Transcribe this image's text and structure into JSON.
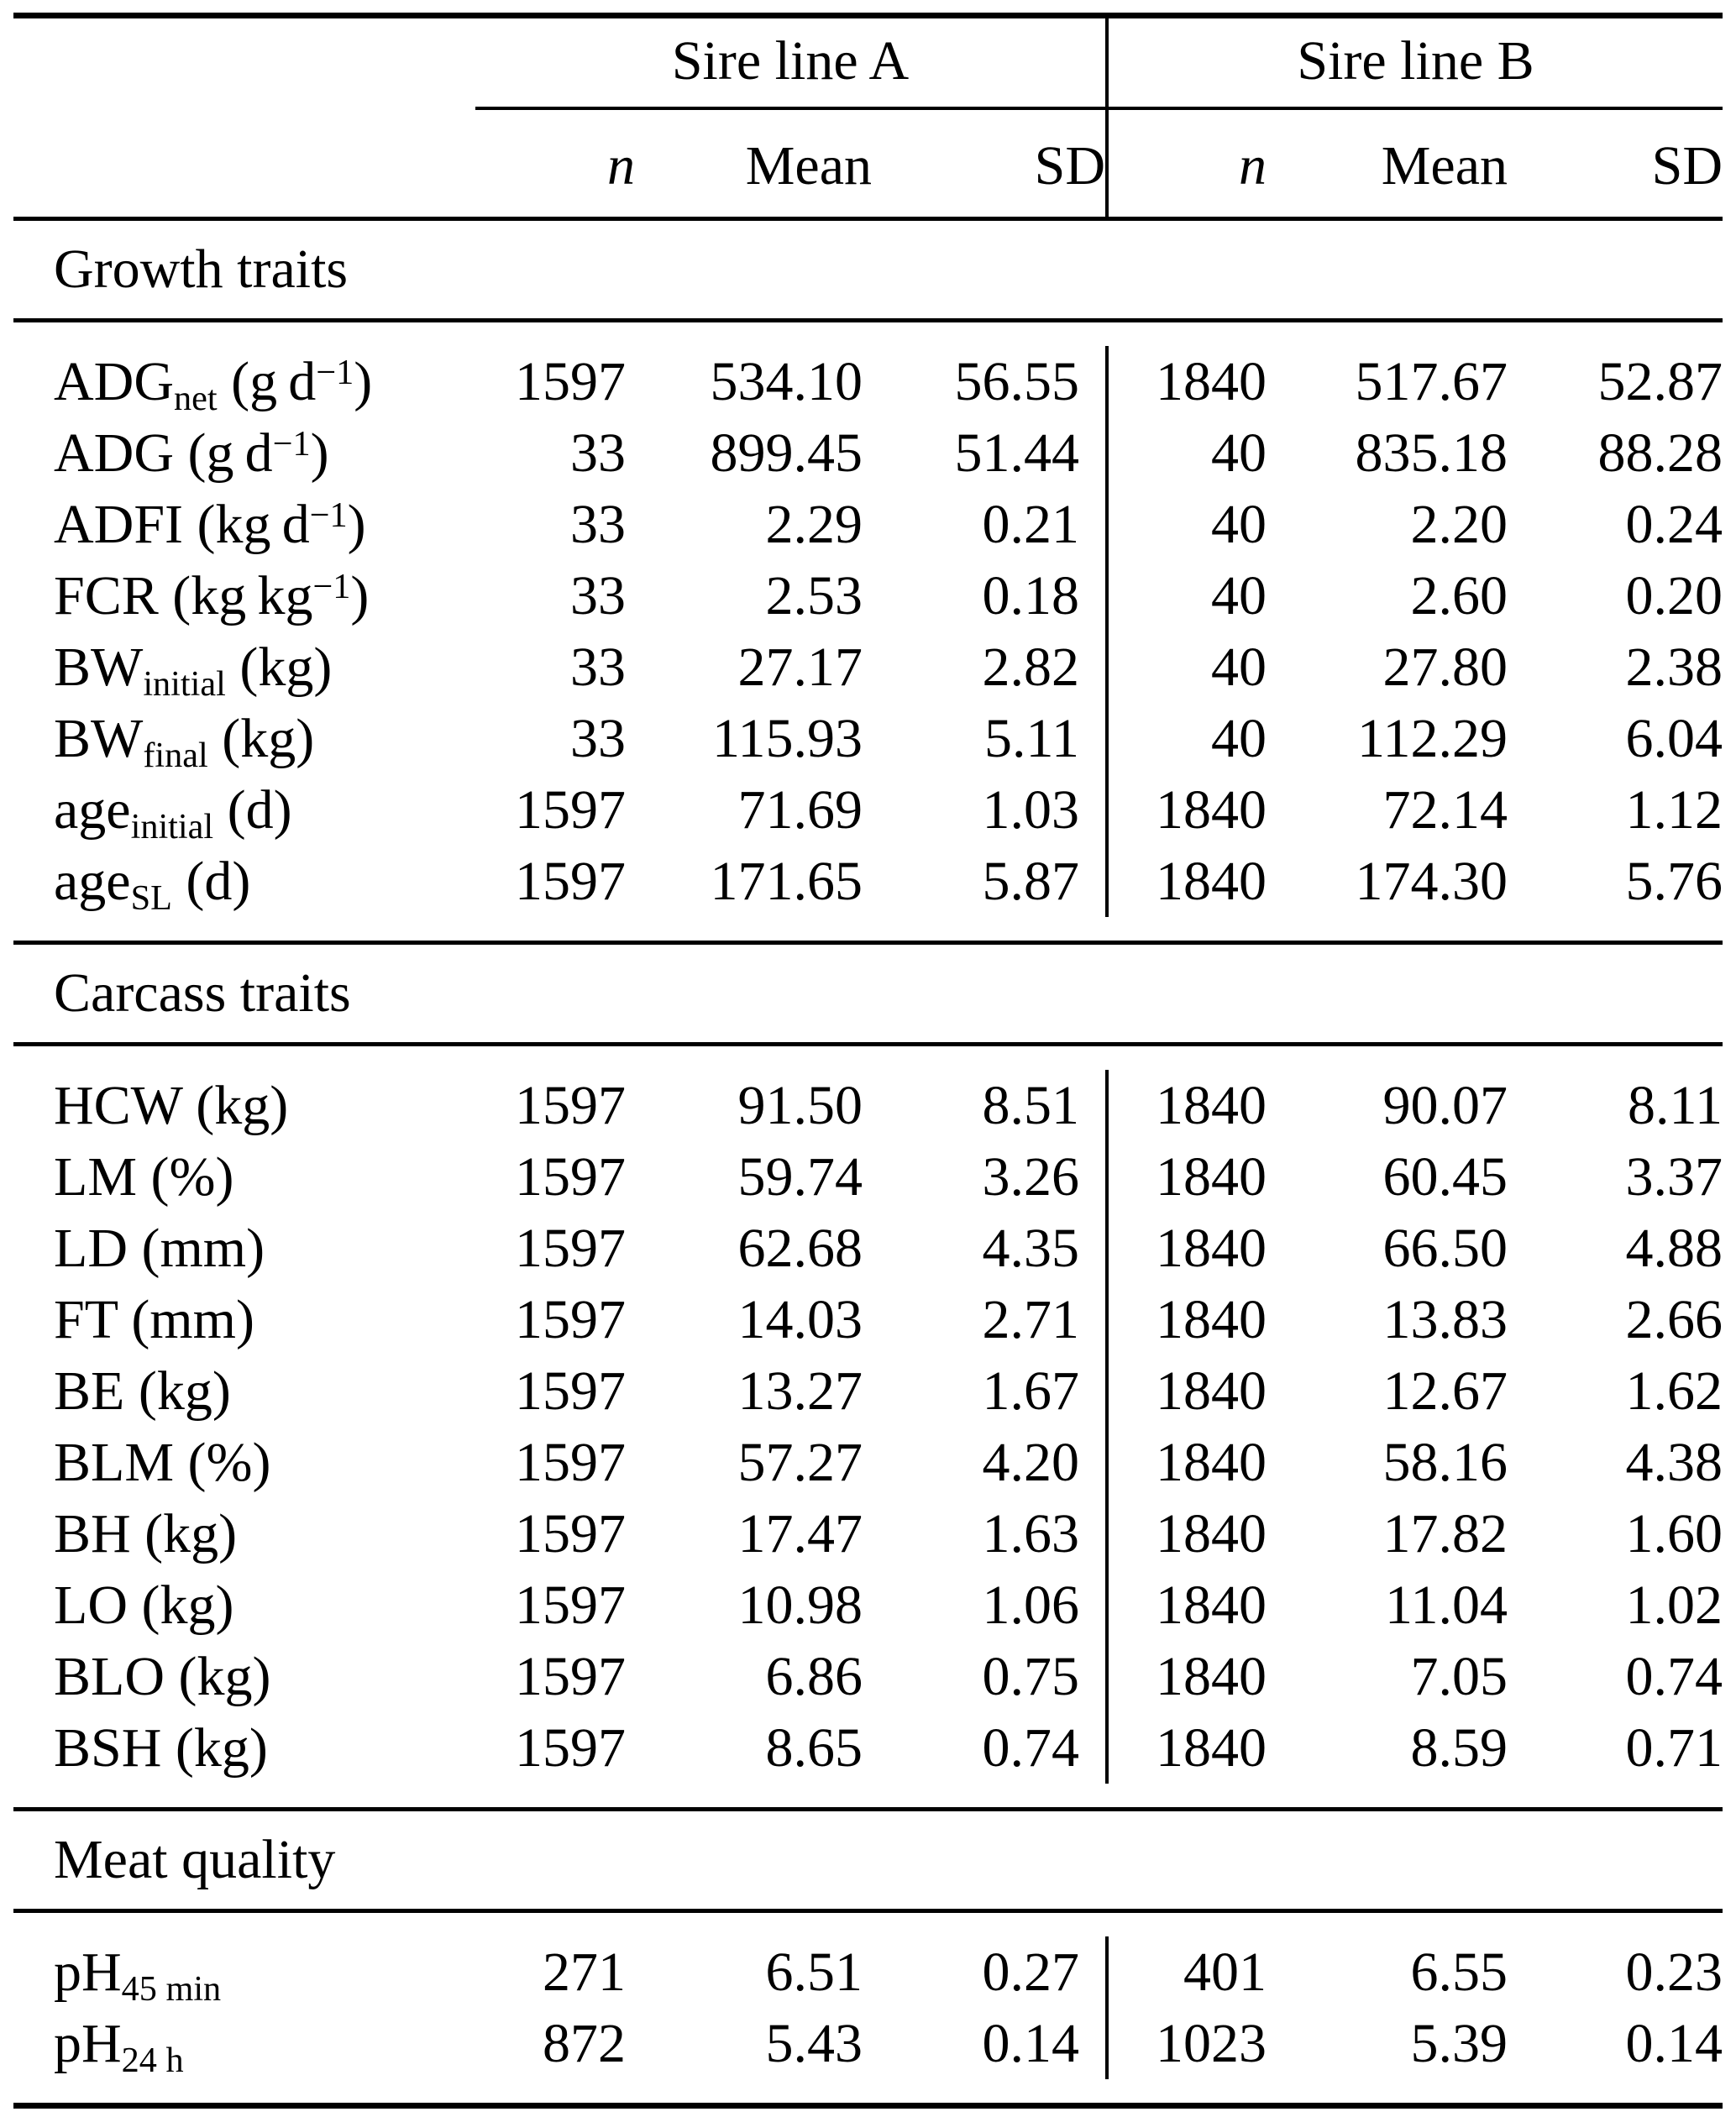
{
  "page": {
    "background": "#ffffff",
    "text_color": "#000000",
    "rule_color": "#000000"
  },
  "table": {
    "groups": [
      {
        "label": "Sire line A"
      },
      {
        "label": "Sire line B"
      }
    ],
    "columns": {
      "n": "n",
      "mean": "Mean",
      "sd": "SD"
    },
    "sections": [
      {
        "title": "Growth traits",
        "rows": [
          {
            "label": [
              {
                "t": "ADG"
              },
              {
                "t": "net",
                "s": "sub"
              },
              {
                "t": " (g d"
              },
              {
                "t": "−1",
                "s": "sup"
              },
              {
                "t": ")"
              }
            ],
            "a": {
              "n": "1597",
              "mean": "534.10",
              "sd": "56.55"
            },
            "b": {
              "n": "1840",
              "mean": "517.67",
              "sd": "52.87"
            }
          },
          {
            "label": [
              {
                "t": "ADG (g d"
              },
              {
                "t": "−1",
                "s": "sup"
              },
              {
                "t": ")"
              }
            ],
            "a": {
              "n": "33",
              "mean": "899.45",
              "sd": "51.44"
            },
            "b": {
              "n": "40",
              "mean": "835.18",
              "sd": "88.28"
            }
          },
          {
            "label": [
              {
                "t": "ADFI (kg d"
              },
              {
                "t": "−1",
                "s": "sup"
              },
              {
                "t": ")"
              }
            ],
            "a": {
              "n": "33",
              "mean": "2.29",
              "sd": "0.21"
            },
            "b": {
              "n": "40",
              "mean": "2.20",
              "sd": "0.24"
            }
          },
          {
            "label": [
              {
                "t": "FCR (kg kg"
              },
              {
                "t": "−1",
                "s": "sup"
              },
              {
                "t": ")"
              }
            ],
            "a": {
              "n": "33",
              "mean": "2.53",
              "sd": "0.18"
            },
            "b": {
              "n": "40",
              "mean": "2.60",
              "sd": "0.20"
            }
          },
          {
            "label": [
              {
                "t": "BW"
              },
              {
                "t": "initial",
                "s": "sub"
              },
              {
                "t": " (kg)"
              }
            ],
            "a": {
              "n": "33",
              "mean": "27.17",
              "sd": "2.82"
            },
            "b": {
              "n": "40",
              "mean": "27.80",
              "sd": "2.38"
            }
          },
          {
            "label": [
              {
                "t": "BW"
              },
              {
                "t": "final",
                "s": "sub"
              },
              {
                "t": " (kg)"
              }
            ],
            "a": {
              "n": "33",
              "mean": "115.93",
              "sd": "5.11"
            },
            "b": {
              "n": "40",
              "mean": "112.29",
              "sd": "6.04"
            }
          },
          {
            "label": [
              {
                "t": "age"
              },
              {
                "t": "initial",
                "s": "sub"
              },
              {
                "t": " (d)"
              }
            ],
            "a": {
              "n": "1597",
              "mean": "71.69",
              "sd": "1.03"
            },
            "b": {
              "n": "1840",
              "mean": "72.14",
              "sd": "1.12"
            }
          },
          {
            "label": [
              {
                "t": "age"
              },
              {
                "t": "SL",
                "s": "sub"
              },
              {
                "t": " (d)"
              }
            ],
            "a": {
              "n": "1597",
              "mean": "171.65",
              "sd": "5.87"
            },
            "b": {
              "n": "1840",
              "mean": "174.30",
              "sd": "5.76"
            }
          }
        ]
      },
      {
        "title": "Carcass traits",
        "rows": [
          {
            "label": [
              {
                "t": "HCW (kg)"
              }
            ],
            "a": {
              "n": "1597",
              "mean": "91.50",
              "sd": "8.51"
            },
            "b": {
              "n": "1840",
              "mean": "90.07",
              "sd": "8.11"
            }
          },
          {
            "label": [
              {
                "t": "LM (%)"
              }
            ],
            "a": {
              "n": "1597",
              "mean": "59.74",
              "sd": "3.26"
            },
            "b": {
              "n": "1840",
              "mean": "60.45",
              "sd": "3.37"
            }
          },
          {
            "label": [
              {
                "t": "LD (mm)"
              }
            ],
            "a": {
              "n": "1597",
              "mean": "62.68",
              "sd": "4.35"
            },
            "b": {
              "n": "1840",
              "mean": "66.50",
              "sd": "4.88"
            }
          },
          {
            "label": [
              {
                "t": "FT (mm)"
              }
            ],
            "a": {
              "n": "1597",
              "mean": "14.03",
              "sd": "2.71"
            },
            "b": {
              "n": "1840",
              "mean": "13.83",
              "sd": "2.66"
            }
          },
          {
            "label": [
              {
                "t": "BE (kg)"
              }
            ],
            "a": {
              "n": "1597",
              "mean": "13.27",
              "sd": "1.67"
            },
            "b": {
              "n": "1840",
              "mean": "12.67",
              "sd": "1.62"
            }
          },
          {
            "label": [
              {
                "t": "BLM (%)"
              }
            ],
            "a": {
              "n": "1597",
              "mean": "57.27",
              "sd": "4.20"
            },
            "b": {
              "n": "1840",
              "mean": "58.16",
              "sd": "4.38"
            }
          },
          {
            "label": [
              {
                "t": "BH (kg)"
              }
            ],
            "a": {
              "n": "1597",
              "mean": "17.47",
              "sd": "1.63"
            },
            "b": {
              "n": "1840",
              "mean": "17.82",
              "sd": "1.60"
            }
          },
          {
            "label": [
              {
                "t": "LO (kg)"
              }
            ],
            "a": {
              "n": "1597",
              "mean": "10.98",
              "sd": "1.06"
            },
            "b": {
              "n": "1840",
              "mean": "11.04",
              "sd": "1.02"
            }
          },
          {
            "label": [
              {
                "t": "BLO (kg)"
              }
            ],
            "a": {
              "n": "1597",
              "mean": "6.86",
              "sd": "0.75"
            },
            "b": {
              "n": "1840",
              "mean": "7.05",
              "sd": "0.74"
            }
          },
          {
            "label": [
              {
                "t": "BSH (kg)"
              }
            ],
            "a": {
              "n": "1597",
              "mean": "8.65",
              "sd": "0.74"
            },
            "b": {
              "n": "1840",
              "mean": "8.59",
              "sd": "0.71"
            }
          }
        ]
      },
      {
        "title": "Meat quality",
        "rows": [
          {
            "label": [
              {
                "t": "pH"
              },
              {
                "t": "45 min",
                "s": "sub"
              }
            ],
            "a": {
              "n": "271",
              "mean": "6.51",
              "sd": "0.27"
            },
            "b": {
              "n": "401",
              "mean": "6.55",
              "sd": "0.23"
            }
          },
          {
            "label": [
              {
                "t": "pH"
              },
              {
                "t": "24 h",
                "s": "sub"
              }
            ],
            "a": {
              "n": "872",
              "mean": "5.43",
              "sd": "0.14"
            },
            "b": {
              "n": "1023",
              "mean": "5.39",
              "sd": "0.14"
            }
          }
        ]
      }
    ]
  }
}
